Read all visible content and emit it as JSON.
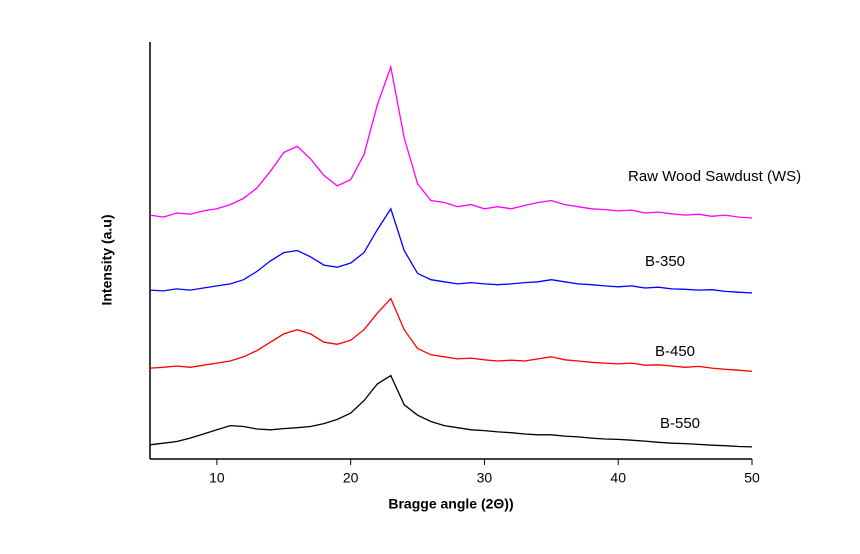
{
  "chart_data": {
    "type": "line",
    "x_label": "Bragge angle (2Θ))",
    "y_label": "Intensity (a.u)",
    "x": [
      5,
      6,
      7,
      8,
      9,
      10,
      11,
      12,
      13,
      14,
      15,
      16,
      17,
      18,
      19,
      20,
      21,
      22,
      23,
      24,
      25,
      26,
      27,
      28,
      29,
      30,
      31,
      32,
      33,
      34,
      35,
      36,
      37,
      38,
      39,
      40,
      41,
      42,
      43,
      44,
      45,
      46,
      47,
      48,
      49,
      50
    ],
    "xlim": [
      5,
      50
    ],
    "xticks": [
      10,
      20,
      30,
      40,
      50
    ],
    "ylim": [
      0,
      100
    ],
    "series": [
      {
        "name": "Raw Wood Sawdust (WS)",
        "color": "#ff00ff",
        "values": [
          58.5,
          58,
          59,
          58.7,
          59.5,
          60,
          61,
          62.5,
          65,
          69,
          73.5,
          75,
          72,
          68,
          65.5,
          67,
          73,
          85,
          94,
          77,
          66,
          62,
          61.5,
          60.5,
          61,
          60,
          60.5,
          60,
          60.8,
          61.5,
          62,
          61,
          60.5,
          60,
          59.8,
          59.5,
          59.7,
          59,
          59.2,
          58.8,
          58.5,
          58.7,
          58.2,
          58.5,
          58,
          57.8
        ]
      },
      {
        "name": "B-350",
        "color": "#0000ff",
        "values": [
          40.5,
          40.3,
          40.8,
          40.5,
          41,
          41.5,
          42,
          43,
          45,
          47.5,
          49.5,
          50,
          48.5,
          46.5,
          46,
          47,
          49.5,
          55,
          60,
          50,
          44.5,
          43,
          42.5,
          42,
          42.3,
          42,
          41.8,
          42,
          42.3,
          42.5,
          43,
          42.5,
          42,
          41.8,
          41.5,
          41.3,
          41.5,
          41,
          41.2,
          40.8,
          40.7,
          40.5,
          40.6,
          40.2,
          40,
          39.8
        ]
      },
      {
        "name": "B-450",
        "color": "#ff0000",
        "values": [
          21.8,
          22,
          22.3,
          22,
          22.5,
          23,
          23.5,
          24.5,
          26,
          28,
          30,
          31,
          30,
          28,
          27.5,
          28.5,
          31,
          35,
          38.5,
          31,
          26.5,
          25,
          24.5,
          24,
          24.2,
          23.8,
          23.5,
          23.7,
          23.5,
          24,
          24.5,
          23.8,
          23.5,
          23.2,
          23,
          22.8,
          23,
          22.5,
          22.6,
          22.3,
          22,
          22.2,
          21.8,
          21.5,
          21.3,
          21
        ]
      },
      {
        "name": "B-550",
        "color": "#000000",
        "values": [
          3.4,
          3.8,
          4.2,
          5,
          6,
          7,
          8,
          7.8,
          7.2,
          7,
          7.3,
          7.5,
          7.8,
          8.5,
          9.5,
          11,
          14,
          18,
          20,
          13,
          10.5,
          9,
          8,
          7.5,
          7,
          6.8,
          6.5,
          6.3,
          6,
          5.8,
          5.8,
          5.5,
          5.3,
          5,
          4.8,
          4.7,
          4.5,
          4.3,
          4,
          3.8,
          3.7,
          3.5,
          3.3,
          3.2,
          3,
          2.9
        ]
      }
    ]
  }
}
